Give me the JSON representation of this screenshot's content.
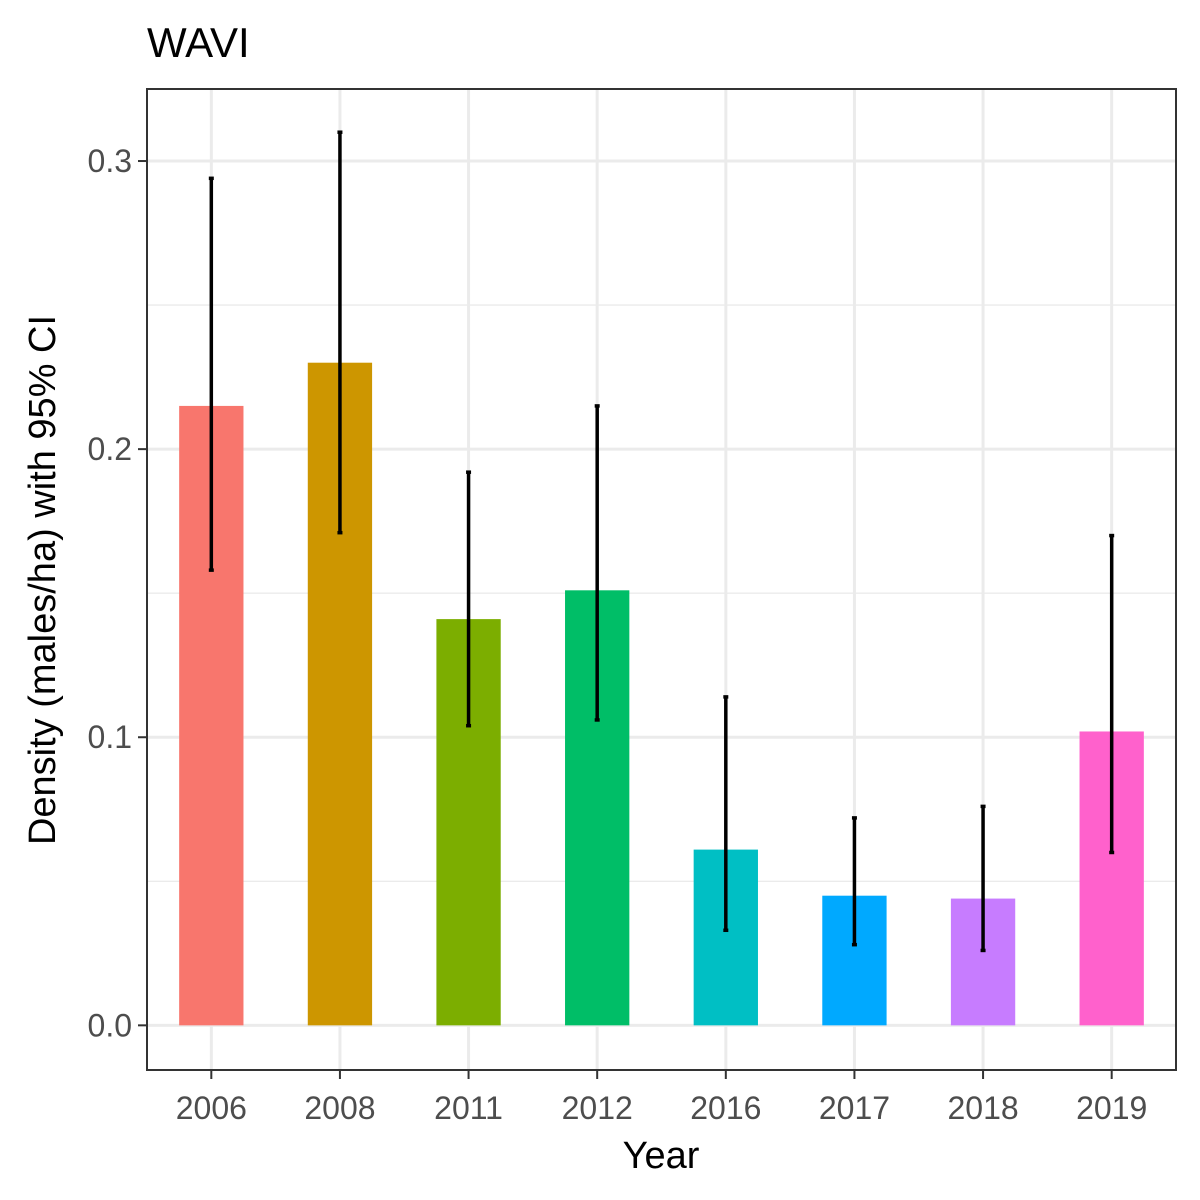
{
  "chart_data": {
    "type": "bar",
    "title": "WAVI",
    "xlabel": "Year",
    "ylabel": "Density (males/ha) with 95% CI",
    "categories": [
      "2006",
      "2008",
      "2011",
      "2012",
      "2016",
      "2017",
      "2018",
      "2019"
    ],
    "values": [
      0.215,
      0.23,
      0.141,
      0.151,
      0.061,
      0.045,
      0.044,
      0.102
    ],
    "ci_lower": [
      0.158,
      0.171,
      0.104,
      0.106,
      0.033,
      0.028,
      0.026,
      0.06
    ],
    "ci_upper": [
      0.294,
      0.31,
      0.192,
      0.215,
      0.114,
      0.072,
      0.076,
      0.17
    ],
    "colors": [
      "#F8766D",
      "#CD9600",
      "#7CAE00",
      "#00BE67",
      "#00BFC4",
      "#00A9FF",
      "#C77CFF",
      "#FF61CC"
    ],
    "ylim": [
      -0.0155,
      0.325
    ],
    "yticks": [
      0.0,
      0.1,
      0.2,
      0.3
    ],
    "ytick_labels": [
      "0.0",
      "0.1",
      "0.2",
      "0.3"
    ],
    "grid": true,
    "legend": "none"
  }
}
